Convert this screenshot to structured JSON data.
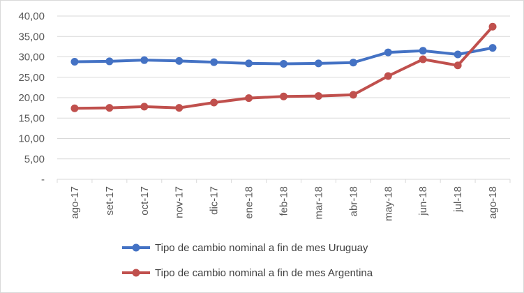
{
  "chart_data": {
    "type": "line",
    "title": "",
    "xlabel": "",
    "ylabel": "",
    "ylim": [
      0,
      40
    ],
    "y_ticks": [
      "-",
      "5,00",
      "10,00",
      "15,00",
      "20,00",
      "25,00",
      "30,00",
      "35,00",
      "40,00"
    ],
    "categories": [
      "ago-17",
      "set-17",
      "oct-17",
      "nov-17",
      "dic-17",
      "ene-18",
      "feb-18",
      "mar-18",
      "abr-18",
      "may-18",
      "jun-18",
      "jul-18",
      "ago-18"
    ],
    "grid": true,
    "legend_position": "bottom",
    "series": [
      {
        "name": "Tipo de cambio nominal a fin de mes Uruguay",
        "color": "#4472c4",
        "values": [
          28.8,
          28.9,
          29.2,
          29.0,
          28.7,
          28.4,
          28.3,
          28.4,
          28.6,
          31.1,
          31.5,
          30.6,
          32.2
        ]
      },
      {
        "name": "Tipo de cambio nominal a fin de mes Argentina",
        "color": "#c0504d",
        "values": [
          17.4,
          17.5,
          17.8,
          17.5,
          18.8,
          19.9,
          20.3,
          20.4,
          20.7,
          25.3,
          29.4,
          27.9,
          37.4
        ]
      }
    ]
  }
}
